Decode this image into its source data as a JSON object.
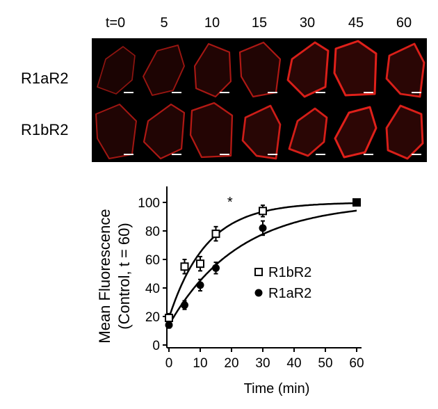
{
  "micrographs": {
    "timepoints": [
      "t=0",
      "5",
      "10",
      "15",
      "30",
      "45",
      "60"
    ],
    "rows": [
      {
        "label": "R1aR2",
        "intensity": [
          0.35,
          0.45,
          0.55,
          0.6,
          0.95,
          1.0,
          0.95
        ]
      },
      {
        "label": "R1bR2",
        "intensity": [
          0.5,
          0.6,
          0.65,
          0.85,
          0.9,
          1.0,
          0.95
        ]
      }
    ],
    "stain_color": "#e0201a"
  },
  "chart_data": {
    "type": "scatter",
    "xlabel": "Time (min)",
    "ylabel_line1": "Mean Fluorescence",
    "ylabel_line2": "(Control, t = 60)",
    "xlim": [
      0,
      60
    ],
    "ylim": [
      0,
      100
    ],
    "xticks": [
      "0",
      "10",
      "20",
      "30",
      "40",
      "50",
      "60"
    ],
    "yticks": [
      "0",
      "20",
      "40",
      "60",
      "80",
      "100"
    ],
    "annotation": "*",
    "legend": [
      {
        "name": "R1bR2",
        "marker": "open-square"
      },
      {
        "name": "R1aR2",
        "marker": "filled-circle"
      }
    ],
    "series": [
      {
        "name": "R1bR2",
        "marker": "open-square",
        "x": [
          0,
          5,
          10,
          15,
          30,
          60
        ],
        "y": [
          19,
          55,
          57,
          78,
          94,
          100
        ],
        "err": [
          3,
          5,
          5,
          5,
          4,
          1
        ]
      },
      {
        "name": "R1aR2",
        "marker": "filled-circle",
        "x": [
          0,
          5,
          10,
          15,
          30,
          60
        ],
        "y": [
          14,
          28,
          42,
          54,
          82,
          100
        ],
        "err": [
          2,
          3,
          4,
          4,
          5,
          1
        ]
      }
    ]
  }
}
